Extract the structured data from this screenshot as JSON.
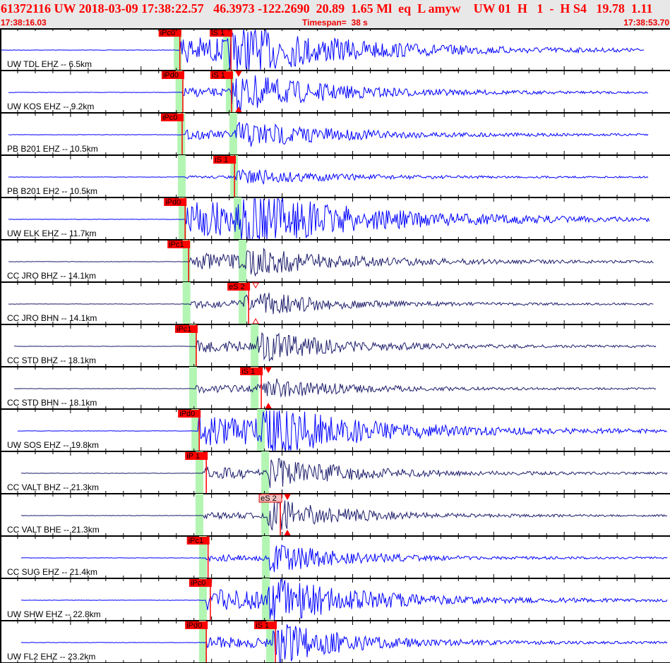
{
  "header": {
    "title": "61372116 UW 2018-03-09 17:38:22.57   46.3973 -122.2690  20.89  1.65 Ml  eq  L amyw    UW 01  H   1  -  H S4   19.78  1.11",
    "start_time": "17:38:16.03",
    "timespan": "Timespan=  38 s",
    "end_time": "17:38:53.70"
  },
  "colors": {
    "trace_z": "#0000ff",
    "trace_bb": "#1c1c6b",
    "pick": "#ff0000",
    "predicted": "#b3f5b3",
    "header_text": "#ff0000",
    "header_bg": "#e8e8e8"
  },
  "timespan_seconds": 38,
  "traces": [
    {
      "label": "UW TDL EHZ -- 6.5km",
      "color": "#0000ff",
      "predicted_p": 10.1,
      "predicted_s": 12.9,
      "picks": [
        {
          "phase": "iPc0",
          "time": 10.2
        },
        {
          "phase": "iS 1",
          "time": 13.1
        }
      ]
    },
    {
      "label": "UW KOS EHZ -- 9.2km",
      "color": "#0000ff",
      "predicted_p": 10.2,
      "predicted_s": 13.05,
      "picks": [
        {
          "phase": "iPd0",
          "time": 10.37
        },
        {
          "phase": "iS 1",
          "time": 13.13,
          "marker": true
        }
      ]
    },
    {
      "label": "PB B201 EHZ -- 10.5km",
      "color": "#0000ff",
      "predicted_p": 10.3,
      "predicted_s": 13.25,
      "picks": [
        {
          "phase": "iPc0",
          "time": 10.33
        }
      ]
    },
    {
      "label": "PB B201 EH2 -- 10.5km",
      "color": "#0000ff",
      "predicted_p": 10.33,
      "predicted_s": 13.3,
      "picks": [
        {
          "phase": "iS 1",
          "time": 13.3
        }
      ]
    },
    {
      "label": "UW ELK EHZ -- 11.7km",
      "color": "#0000ff",
      "predicted_p": 10.37,
      "predicted_s": 13.5,
      "picks": [
        {
          "phase": "iPd0",
          "time": 10.5
        }
      ]
    },
    {
      "label": "CC JRO BHZ -- 14.1km",
      "color": "#1c1c6b",
      "predicted_p": 10.6,
      "predicted_s": 13.78,
      "picks": [
        {
          "phase": "iPc1",
          "time": 10.7
        }
      ]
    },
    {
      "label": "CC JRO BHN -- 14.1km",
      "color": "#1c1c6b",
      "predicted_p": 10.6,
      "predicted_s": 13.78,
      "picks": [
        {
          "phase": "eS 2",
          "time": 14.1,
          "marker": true,
          "hollow": true
        }
      ]
    },
    {
      "label": "CC STD BHZ -- 18.1km",
      "color": "#1c1c6b",
      "predicted_p": 10.97,
      "predicted_s": 14.46,
      "picks": [
        {
          "phase": "iPc1",
          "time": 11.13
        }
      ]
    },
    {
      "label": "CC STD BHN -- 18.1km",
      "color": "#1c1c6b",
      "predicted_p": 10.97,
      "predicted_s": 14.46,
      "picks": [
        {
          "phase": "iS 1",
          "time": 14.82,
          "marker": true
        }
      ]
    },
    {
      "label": "UW SOS EHZ -- 19.8km",
      "color": "#0000ff",
      "predicted_p": 11.1,
      "predicted_s": 14.82,
      "picks": [
        {
          "phase": "iPd0",
          "time": 11.3
        }
      ]
    },
    {
      "label": "CC VALT BHZ -- 21.3km",
      "color": "#1c1c6b",
      "predicted_p": 11.33,
      "predicted_s": 15.06,
      "picks": [
        {
          "phase": "iP 1",
          "time": 11.7
        }
      ]
    },
    {
      "label": "CC VALT BHE -- 21.3km",
      "color": "#1c1c6b",
      "predicted_p": 11.33,
      "predicted_s": 15.06,
      "picks": [
        {
          "phase": "eS 2",
          "time": 15.9,
          "marker": true,
          "light": true
        }
      ]
    },
    {
      "label": "CC SUG EHZ -- 21.4km",
      "color": "#0000ff",
      "predicted_p": 11.53,
      "predicted_s": 15.1,
      "picks": [
        {
          "phase": "iPc1",
          "time": 11.8
        }
      ]
    },
    {
      "label": "UW SHW EHZ -- 22.8km",
      "color": "#0000ff",
      "predicted_p": 11.53,
      "predicted_s": 15.1,
      "picks": [
        {
          "phase": "iPc0",
          "time": 11.93
        }
      ]
    },
    {
      "label": "UW FL2 EHZ -- 23.2km",
      "color": "#0000ff",
      "predicted_p": 11.53,
      "predicted_s": 15.34,
      "picks": [
        {
          "phase": "iPd0",
          "time": 11.7
        },
        {
          "phase": "iS 1",
          "time": 15.62
        }
      ]
    }
  ]
}
